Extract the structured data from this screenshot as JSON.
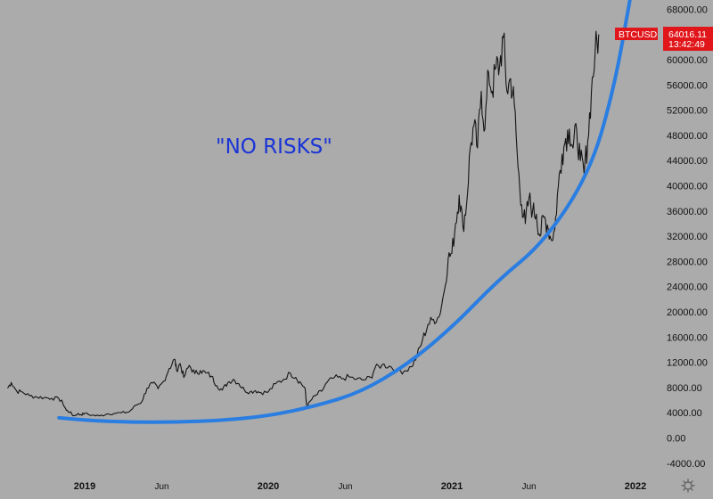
{
  "chart_data": {
    "type": "line",
    "symbol": "BTCUSD",
    "last_price": "64016.11",
    "countdown": "13:42:49",
    "annotation": "\"NO RISKS\"",
    "ylim": [
      -6000,
      69500
    ],
    "y_ticks": [
      "68000.00",
      "64000.00",
      "60000.00",
      "56000.00",
      "52000.00",
      "48000.00",
      "44000.00",
      "40000.00",
      "36000.00",
      "32000.00",
      "28000.00",
      "24000.00",
      "20000.00",
      "16000.00",
      "12000.00",
      "8000.00",
      "4000.00",
      "0.00",
      "-4000.00"
    ],
    "x_ticks": [
      {
        "label": "2019",
        "t": 2019.0,
        "kind": "year"
      },
      {
        "label": "Jun",
        "t": 2019.42,
        "kind": "month"
      },
      {
        "label": "2020",
        "t": 2020.0,
        "kind": "year"
      },
      {
        "label": "Jun",
        "t": 2020.42,
        "kind": "month"
      },
      {
        "label": "2021",
        "t": 2021.0,
        "kind": "year"
      },
      {
        "label": "Jun",
        "t": 2021.42,
        "kind": "month"
      },
      {
        "label": "2022",
        "t": 2022.0,
        "kind": "year"
      }
    ],
    "xlim": [
      2018.58,
      2022.25
    ],
    "series": [
      {
        "values": [
          [
            2018.58,
            7900
          ],
          [
            2018.6,
            8800
          ],
          [
            2018.63,
            7400
          ],
          [
            2018.66,
            7300
          ],
          [
            2018.7,
            6700
          ],
          [
            2018.74,
            6500
          ],
          [
            2018.78,
            6400
          ],
          [
            2018.82,
            6300
          ],
          [
            2018.86,
            6200
          ],
          [
            2018.88,
            5600
          ],
          [
            2018.9,
            4400
          ],
          [
            2018.92,
            4100
          ],
          [
            2018.94,
            3500
          ],
          [
            2018.96,
            3800
          ],
          [
            2018.98,
            3700
          ],
          [
            2019.0,
            3900
          ],
          [
            2019.04,
            3600
          ],
          [
            2019.08,
            3500
          ],
          [
            2019.12,
            3800
          ],
          [
            2019.16,
            3900
          ],
          [
            2019.2,
            4000
          ],
          [
            2019.24,
            4100
          ],
          [
            2019.28,
            5200
          ],
          [
            2019.31,
            5700
          ],
          [
            2019.34,
            7900
          ],
          [
            2019.37,
            8700
          ],
          [
            2019.4,
            7800
          ],
          [
            2019.43,
            9000
          ],
          [
            2019.46,
            11000
          ],
          [
            2019.49,
            12500
          ],
          [
            2019.5,
            10800
          ],
          [
            2019.52,
            11800
          ],
          [
            2019.54,
            9600
          ],
          [
            2019.57,
            11500
          ],
          [
            2019.6,
            10200
          ],
          [
            2019.63,
            10700
          ],
          [
            2019.66,
            10300
          ],
          [
            2019.69,
            9800
          ],
          [
            2019.72,
            8300
          ],
          [
            2019.75,
            7600
          ],
          [
            2019.78,
            8800
          ],
          [
            2019.81,
            9300
          ],
          [
            2019.84,
            8600
          ],
          [
            2019.87,
            7600
          ],
          [
            2019.9,
            7300
          ],
          [
            2019.93,
            7500
          ],
          [
            2019.96,
            7200
          ],
          [
            2020.0,
            7300
          ],
          [
            2020.04,
            8600
          ],
          [
            2020.08,
            9200
          ],
          [
            2020.12,
            10300
          ],
          [
            2020.15,
            9600
          ],
          [
            2020.18,
            8600
          ],
          [
            2020.2,
            7900
          ],
          [
            2020.21,
            4900
          ],
          [
            2020.23,
            5900
          ],
          [
            2020.26,
            6800
          ],
          [
            2020.29,
            7400
          ],
          [
            2020.32,
            8800
          ],
          [
            2020.36,
            9600
          ],
          [
            2020.4,
            9400
          ],
          [
            2020.44,
            9700
          ],
          [
            2020.48,
            9300
          ],
          [
            2020.52,
            9200
          ],
          [
            2020.56,
            9600
          ],
          [
            2020.58,
            11000
          ],
          [
            2020.62,
            11600
          ],
          [
            2020.66,
            11400
          ],
          [
            2020.7,
            10700
          ],
          [
            2020.74,
            10600
          ],
          [
            2020.78,
            11300
          ],
          [
            2020.81,
            13000
          ],
          [
            2020.84,
            15500
          ],
          [
            2020.87,
            18000
          ],
          [
            2020.9,
            18800
          ],
          [
            2020.93,
            19200
          ],
          [
            2020.96,
            23500
          ],
          [
            2020.98,
            28500
          ],
          [
            2021.0,
            29300
          ],
          [
            2021.02,
            34000
          ],
          [
            2021.04,
            38500
          ],
          [
            2021.06,
            33500
          ],
          [
            2021.08,
            37000
          ],
          [
            2021.1,
            46000
          ],
          [
            2021.12,
            49500
          ],
          [
            2021.14,
            46000
          ],
          [
            2021.16,
            55000
          ],
          [
            2021.18,
            49000
          ],
          [
            2021.2,
            58000
          ],
          [
            2021.22,
            55000
          ],
          [
            2021.24,
            58700
          ],
          [
            2021.26,
            59000
          ],
          [
            2021.28,
            63500
          ],
          [
            2021.3,
            55000
          ],
          [
            2021.32,
            57000
          ],
          [
            2021.34,
            53000
          ],
          [
            2021.36,
            43000
          ],
          [
            2021.38,
            37000
          ],
          [
            2021.4,
            34000
          ],
          [
            2021.42,
            38000
          ],
          [
            2021.44,
            36000
          ],
          [
            2021.46,
            35500
          ],
          [
            2021.48,
            32000
          ],
          [
            2021.5,
            35000
          ],
          [
            2021.52,
            33800
          ],
          [
            2021.54,
            31500
          ],
          [
            2021.56,
            33000
          ],
          [
            2021.58,
            40000
          ],
          [
            2021.6,
            45000
          ],
          [
            2021.62,
            47500
          ],
          [
            2021.64,
            49000
          ],
          [
            2021.66,
            46000
          ],
          [
            2021.68,
            48800
          ],
          [
            2021.7,
            44000
          ],
          [
            2021.72,
            42000
          ],
          [
            2021.74,
            47000
          ],
          [
            2021.76,
            55000
          ],
          [
            2021.78,
            61000
          ],
          [
            2021.8,
            64016
          ]
        ]
      }
    ],
    "trend_curve": [
      [
        2018.86,
        3200
      ],
      [
        2019.0,
        2800
      ],
      [
        2019.25,
        2500
      ],
      [
        2019.5,
        2500
      ],
      [
        2019.75,
        2800
      ],
      [
        2020.0,
        3500
      ],
      [
        2020.25,
        5000
      ],
      [
        2020.5,
        7200
      ],
      [
        2020.75,
        11500
      ],
      [
        2021.0,
        17500
      ],
      [
        2021.25,
        25000
      ],
      [
        2021.5,
        31000
      ],
      [
        2021.75,
        42000
      ],
      [
        2021.88,
        55000
      ],
      [
        2021.97,
        69500
      ]
    ],
    "colors": {
      "background": "#ababab",
      "price_line": "#141414",
      "trend_curve": "#2a7de1",
      "annotation": "#1a34d6",
      "badge": "#e0161b"
    }
  }
}
